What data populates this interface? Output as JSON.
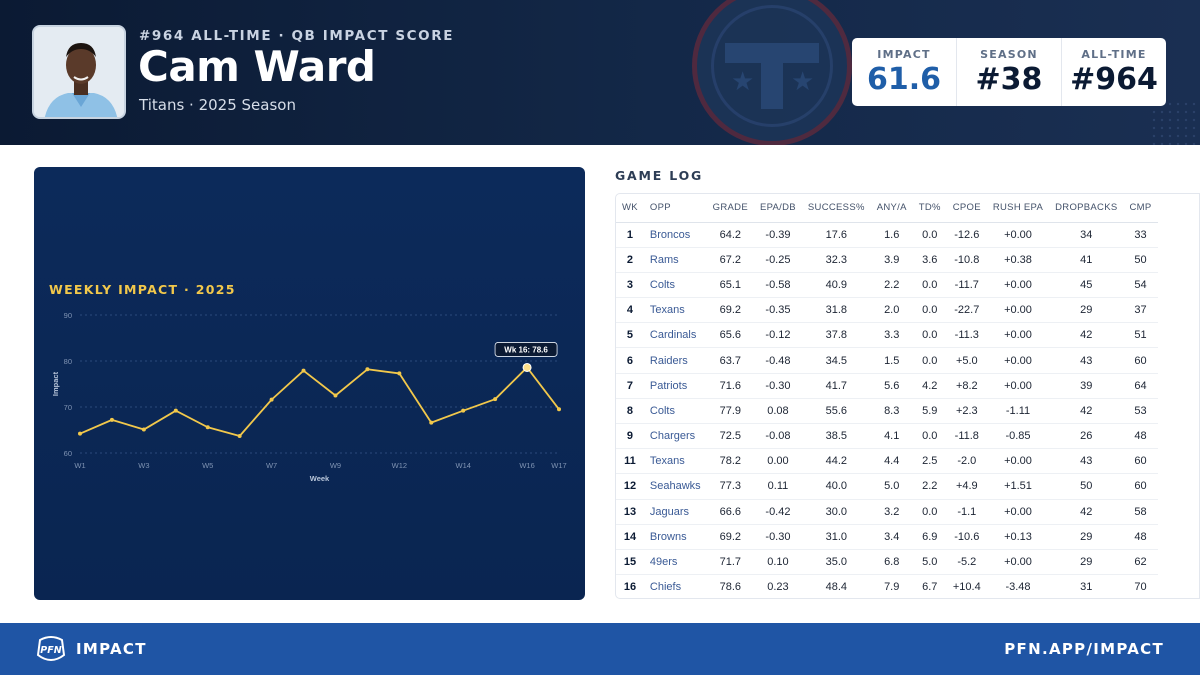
{
  "header": {
    "rank_line": "#964 ALL-TIME · QB IMPACT SCORE",
    "player_name": "Cam Ward",
    "team_season": "Titans · 2025 Season",
    "stats": [
      {
        "label": "IMPACT",
        "value": "61.6"
      },
      {
        "label": "SEASON",
        "value": "#38"
      },
      {
        "label": "ALL-TIME",
        "value": "#964"
      }
    ]
  },
  "chart": {
    "title": "WEEKLY IMPACT · 2025",
    "tooltip": "Wk 16: 78.6"
  },
  "chart_data": {
    "type": "line",
    "title": "WEEKLY IMPACT · 2025",
    "xlabel": "Week",
    "ylabel": "Impact",
    "ylim": [
      60,
      90
    ],
    "yticks": [
      60,
      70,
      80,
      90
    ],
    "x": [
      "W1",
      "W2",
      "W3",
      "W4",
      "W5",
      "W6",
      "W7",
      "W8",
      "W9",
      "W11",
      "W12",
      "W13",
      "W14",
      "W15",
      "W16",
      "W17"
    ],
    "xtick_labels": [
      "W1",
      "W3",
      "W5",
      "W7",
      "W9",
      "W12",
      "W14",
      "W16",
      "W17"
    ],
    "values": [
      64.2,
      67.2,
      65.1,
      69.2,
      65.6,
      63.7,
      71.6,
      77.9,
      72.5,
      78.2,
      77.3,
      66.6,
      69.2,
      71.7,
      78.6,
      69.5
    ],
    "grid": true,
    "highlight": {
      "x": "W16",
      "value": 78.6
    },
    "colors": {
      "line": "#f2c84b",
      "background": "#0b2856"
    }
  },
  "game_log": {
    "title": "GAME LOG",
    "columns": [
      "WK",
      "OPP",
      "GRADE",
      "EPA/DB",
      "SUCCESS%",
      "ANY/A",
      "TD%",
      "CPOE",
      "RUSH EPA",
      "DROPBACKS",
      "CMP"
    ],
    "rows": [
      [
        "1",
        "Broncos",
        "64.2",
        "-0.39",
        "17.6",
        "1.6",
        "0.0",
        "-12.6",
        "+0.00",
        "34",
        "33"
      ],
      [
        "2",
        "Rams",
        "67.2",
        "-0.25",
        "32.3",
        "3.9",
        "3.6",
        "-10.8",
        "+0.38",
        "41",
        "50"
      ],
      [
        "3",
        "Colts",
        "65.1",
        "-0.58",
        "40.9",
        "2.2",
        "0.0",
        "-11.7",
        "+0.00",
        "45",
        "54"
      ],
      [
        "4",
        "Texans",
        "69.2",
        "-0.35",
        "31.8",
        "2.0",
        "0.0",
        "-22.7",
        "+0.00",
        "29",
        "37"
      ],
      [
        "5",
        "Cardinals",
        "65.6",
        "-0.12",
        "37.8",
        "3.3",
        "0.0",
        "-11.3",
        "+0.00",
        "42",
        "51"
      ],
      [
        "6",
        "Raiders",
        "63.7",
        "-0.48",
        "34.5",
        "1.5",
        "0.0",
        "+5.0",
        "+0.00",
        "43",
        "60"
      ],
      [
        "7",
        "Patriots",
        "71.6",
        "-0.30",
        "41.7",
        "5.6",
        "4.2",
        "+8.2",
        "+0.00",
        "39",
        "64"
      ],
      [
        "8",
        "Colts",
        "77.9",
        "0.08",
        "55.6",
        "8.3",
        "5.9",
        "+2.3",
        "-1.11",
        "42",
        "53"
      ],
      [
        "9",
        "Chargers",
        "72.5",
        "-0.08",
        "38.5",
        "4.1",
        "0.0",
        "-11.8",
        "-0.85",
        "26",
        "48"
      ],
      [
        "11",
        "Texans",
        "78.2",
        "0.00",
        "44.2",
        "4.4",
        "2.5",
        "-2.0",
        "+0.00",
        "43",
        "60"
      ],
      [
        "12",
        "Seahawks",
        "77.3",
        "0.11",
        "40.0",
        "5.0",
        "2.2",
        "+4.9",
        "+1.51",
        "50",
        "60"
      ],
      [
        "13",
        "Jaguars",
        "66.6",
        "-0.42",
        "30.0",
        "3.2",
        "0.0",
        "-1.1",
        "+0.00",
        "42",
        "58"
      ],
      [
        "14",
        "Browns",
        "69.2",
        "-0.30",
        "31.0",
        "3.4",
        "6.9",
        "-10.6",
        "+0.13",
        "29",
        "48"
      ],
      [
        "15",
        "49ers",
        "71.7",
        "0.10",
        "35.0",
        "6.8",
        "5.0",
        "-5.2",
        "+0.00",
        "29",
        "62"
      ],
      [
        "16",
        "Chiefs",
        "78.6",
        "0.23",
        "48.4",
        "7.9",
        "6.7",
        "+10.4",
        "-3.48",
        "31",
        "70"
      ]
    ]
  },
  "footer": {
    "logo_text": "PFN",
    "brand": "IMPACT",
    "url": "PFN.APP/IMPACT"
  }
}
